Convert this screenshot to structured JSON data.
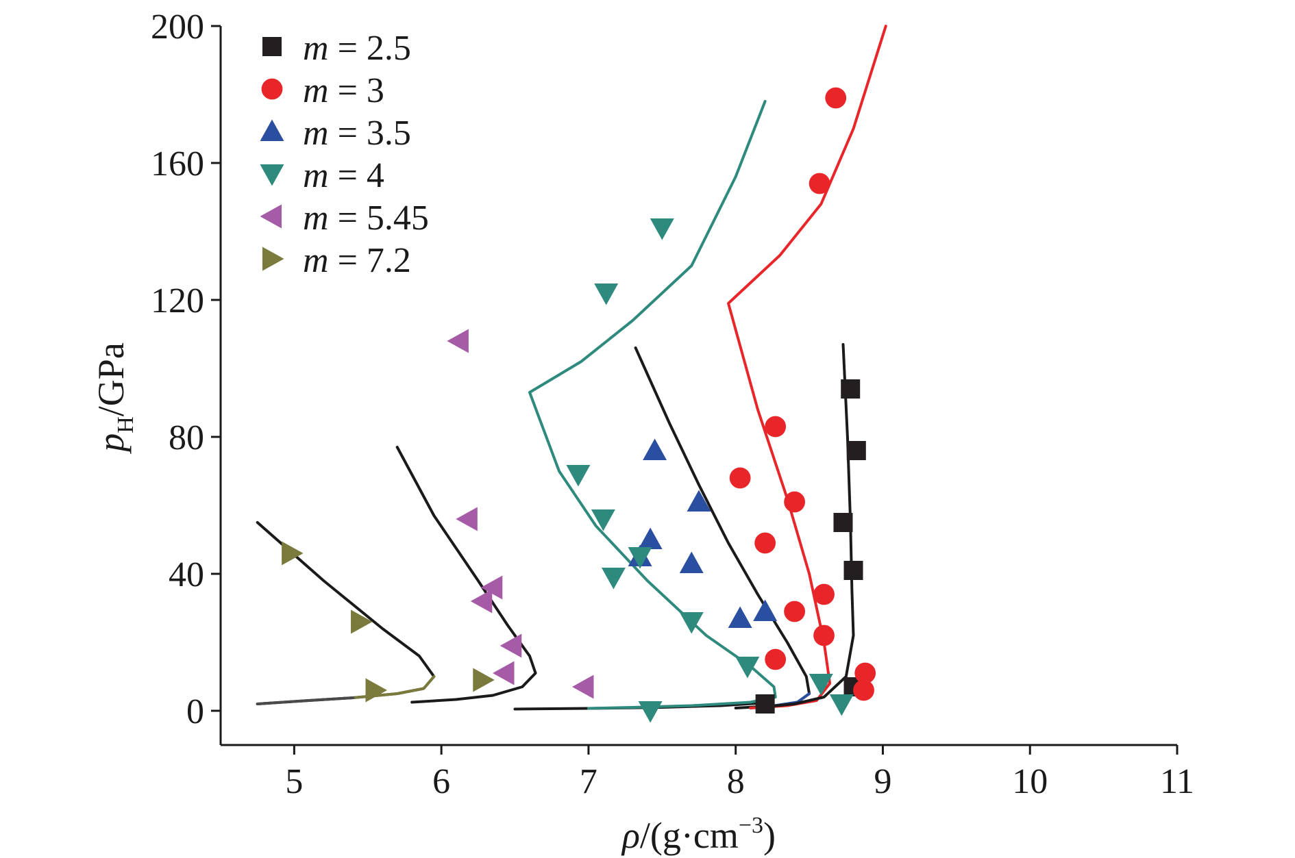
{
  "chart_data": {
    "type": "scatter",
    "title": "",
    "xlabel": {
      "symbol": "ρ",
      "text": "/(g·cm",
      "sup": "−3",
      "close": ")"
    },
    "ylabel": {
      "symbol": "p",
      "sub": "H",
      "text": "/GPa"
    },
    "xlim": [
      4.5,
      11
    ],
    "ylim": [
      -10,
      200
    ],
    "xticks": [
      5,
      6,
      7,
      8,
      9,
      10,
      11
    ],
    "yticks": [
      0,
      40,
      80,
      120,
      160,
      200
    ],
    "grid": false,
    "legend_position": "top-left",
    "series": [
      {
        "name": "m = 2.5",
        "legend_var": "m",
        "legend_value": "= 2.5",
        "marker": "square",
        "color": "#231f20",
        "points": [
          [
            8.78,
            94
          ],
          [
            8.82,
            76
          ],
          [
            8.73,
            55
          ],
          [
            8.8,
            41
          ],
          [
            8.8,
            7
          ],
          [
            8.2,
            2
          ]
        ]
      },
      {
        "name": "m = 3",
        "legend_var": "m",
        "legend_value": "= 3",
        "marker": "circle",
        "color": "#e8262a",
        "points": [
          [
            8.68,
            179
          ],
          [
            8.57,
            154
          ],
          [
            8.27,
            83
          ],
          [
            8.03,
            68
          ],
          [
            8.4,
            61
          ],
          [
            8.2,
            49
          ],
          [
            8.6,
            34
          ],
          [
            8.4,
            29
          ],
          [
            8.6,
            22
          ],
          [
            8.27,
            15
          ],
          [
            8.88,
            11
          ],
          [
            8.87,
            6
          ]
        ]
      },
      {
        "name": "m = 3.5",
        "legend_var": "m",
        "legend_value": "= 3.5",
        "marker": "triangle-up",
        "color": "#2a4ea0",
        "points": [
          [
            7.45,
            76
          ],
          [
            7.75,
            61
          ],
          [
            7.42,
            50
          ],
          [
            7.7,
            43
          ],
          [
            7.35,
            45
          ],
          [
            8.03,
            27
          ],
          [
            8.2,
            29
          ]
        ]
      },
      {
        "name": "m = 4",
        "legend_var": "m",
        "legend_value": "= 4",
        "marker": "triangle-down",
        "color": "#2e8a7c",
        "points": [
          [
            7.5,
            141
          ],
          [
            7.12,
            122
          ],
          [
            6.93,
            69
          ],
          [
            7.1,
            56
          ],
          [
            7.17,
            39
          ],
          [
            7.35,
            45
          ],
          [
            7.7,
            26
          ],
          [
            8.08,
            13
          ],
          [
            8.58,
            8
          ],
          [
            8.72,
            2
          ],
          [
            7.42,
            0
          ]
        ]
      },
      {
        "name": "m = 5.45",
        "legend_var": "m",
        "legend_value": "= 5.45",
        "marker": "triangle-left",
        "color": "#a65ba6",
        "points": [
          [
            6.12,
            108
          ],
          [
            6.18,
            56
          ],
          [
            6.35,
            36
          ],
          [
            6.28,
            32
          ],
          [
            6.48,
            19
          ],
          [
            6.43,
            11
          ],
          [
            6.97,
            7
          ]
        ]
      },
      {
        "name": "m = 7.2",
        "legend_var": "m",
        "legend_value": "= 7.2",
        "marker": "triangle-right",
        "color": "#7a7a3c",
        "points": [
          [
            4.98,
            46
          ],
          [
            5.45,
            26
          ],
          [
            5.55,
            6
          ],
          [
            6.28,
            9
          ]
        ]
      }
    ],
    "fit_curves": [
      {
        "color": "#1a1a1a",
        "points": [
          [
            4.75,
            55
          ],
          [
            5.2,
            38
          ],
          [
            5.6,
            24
          ],
          [
            5.85,
            16
          ],
          [
            5.95,
            10
          ],
          [
            5.88,
            6.5
          ],
          [
            5.7,
            5
          ],
          [
            5.4,
            3.8
          ],
          [
            5.1,
            3
          ],
          [
            4.75,
            2
          ]
        ]
      },
      {
        "color": "#7a7a3c",
        "points": [
          [
            5.95,
            10
          ],
          [
            5.88,
            6.5
          ],
          [
            5.7,
            5
          ],
          [
            5.4,
            3.8
          ]
        ]
      },
      {
        "color": "#1a1a1a",
        "points": [
          [
            5.7,
            77
          ],
          [
            5.95,
            57
          ],
          [
            6.25,
            38
          ],
          [
            6.45,
            25
          ],
          [
            6.6,
            16
          ],
          [
            6.64,
            11
          ],
          [
            6.55,
            7
          ],
          [
            6.35,
            4.5
          ],
          [
            6.1,
            3.3
          ],
          [
            5.8,
            2.5
          ]
        ]
      },
      {
        "color": "#1a1a1a",
        "points": [
          [
            6.5,
            0.5
          ],
          [
            7.0,
            0.7
          ],
          [
            7.5,
            1.0
          ],
          [
            7.9,
            1.5
          ],
          [
            8.15,
            2.2
          ],
          [
            8.25,
            3
          ]
        ]
      },
      {
        "color": "#2e8a7c",
        "points": [
          [
            8.2,
            178
          ],
          [
            8.0,
            156
          ],
          [
            7.7,
            130
          ],
          [
            7.3,
            114
          ],
          [
            6.95,
            102
          ],
          [
            6.6,
            93
          ],
          [
            6.8,
            70
          ],
          [
            7.05,
            54
          ],
          [
            7.4,
            38
          ],
          [
            7.8,
            22
          ],
          [
            8.1,
            13
          ],
          [
            8.26,
            7
          ],
          [
            8.27,
            4
          ],
          [
            8.1,
            2.5
          ],
          [
            7.7,
            1.5
          ],
          [
            7.3,
            1.0
          ],
          [
            7.0,
            0.7
          ]
        ]
      },
      {
        "color": "#1a1a1a",
        "points": [
          [
            7.32,
            106
          ],
          [
            7.55,
            84
          ],
          [
            7.75,
            66
          ],
          [
            7.95,
            49
          ],
          [
            8.15,
            34
          ],
          [
            8.35,
            20
          ],
          [
            8.48,
            10
          ],
          [
            8.5,
            5
          ],
          [
            8.42,
            2.5
          ],
          [
            8.25,
            1.4
          ],
          [
            8.0,
            0.8
          ]
        ]
      },
      {
        "color": "#2a4ea0",
        "points": [
          [
            8.5,
            5
          ],
          [
            8.42,
            2.5
          ],
          [
            8.25,
            1.4
          ]
        ]
      },
      {
        "color": "#e8262a",
        "points": [
          [
            9.02,
            200
          ],
          [
            8.8,
            170
          ],
          [
            8.58,
            148
          ],
          [
            8.3,
            133
          ],
          [
            7.95,
            119
          ],
          [
            8.15,
            88
          ],
          [
            8.35,
            62
          ],
          [
            8.5,
            40
          ],
          [
            8.6,
            20
          ],
          [
            8.64,
            8
          ],
          [
            8.55,
            3
          ],
          [
            8.35,
            1.5
          ],
          [
            8.1,
            0.8
          ]
        ]
      },
      {
        "color": "#1a1a1a",
        "points": [
          [
            8.73,
            107
          ],
          [
            8.76,
            80
          ],
          [
            8.78,
            55
          ],
          [
            8.79,
            35
          ],
          [
            8.8,
            22
          ],
          [
            8.75,
            10
          ],
          [
            8.6,
            4
          ],
          [
            8.4,
            2
          ],
          [
            8.2,
            1.2
          ]
        ]
      },
      {
        "color": "#4a4a4a",
        "points": [
          [
            4.75,
            2
          ],
          [
            5.1,
            3
          ],
          [
            5.4,
            3.8
          ]
        ]
      }
    ]
  }
}
